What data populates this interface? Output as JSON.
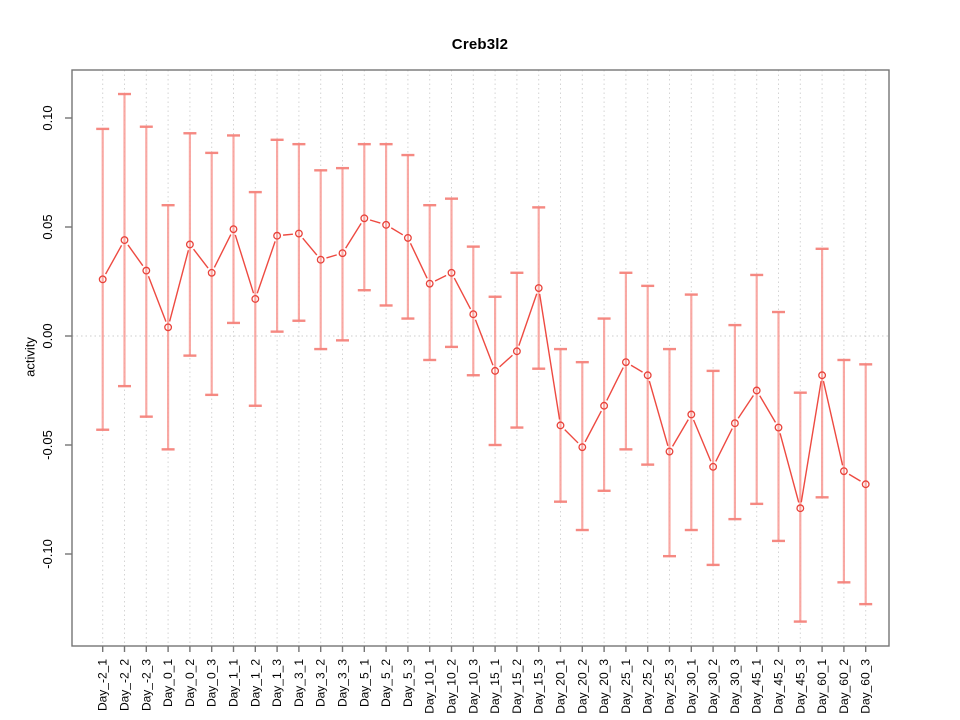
{
  "chart_data": {
    "type": "line",
    "title": "Creb3l2",
    "xlabel": "",
    "ylabel": "activity",
    "legend_position": "none",
    "grid": "vertical dotted gridlines at each category; dotted horizontal reference line at 0",
    "ylim": [
      -0.143,
      0.122
    ],
    "yticks": [
      0.1,
      0.05,
      0.0,
      -0.05,
      -0.1
    ],
    "ytick_labels": [
      "0.10",
      "0.05",
      "0.00",
      "-0.05",
      "-0.10"
    ],
    "zero_reference_line": 0.0,
    "categories": [
      "Day_-2_1",
      "Day_-2_2",
      "Day_-2_3",
      "Day_0_1",
      "Day_0_2",
      "Day_0_3",
      "Day_1_1",
      "Day_1_2",
      "Day_1_3",
      "Day_3_1",
      "Day_3_2",
      "Day_3_3",
      "Day_5_1",
      "Day_5_2",
      "Day_5_3",
      "Day_10_1",
      "Day_10_2",
      "Day_10_3",
      "Day_15_1",
      "Day_15_2",
      "Day_15_3",
      "Day_20_1",
      "Day_20_2",
      "Day_20_3",
      "Day_25_1",
      "Day_25_2",
      "Day_25_3",
      "Day_30_1",
      "Day_30_2",
      "Day_30_3",
      "Day_45_1",
      "Day_45_2",
      "Day_45_3",
      "Day_60_1",
      "Day_60_2",
      "Day_60_3"
    ],
    "series": [
      {
        "name": "activity",
        "marker": "open-circle",
        "values": [
          0.026,
          0.044,
          0.03,
          0.004,
          0.042,
          0.029,
          0.049,
          0.017,
          0.046,
          0.047,
          0.035,
          0.038,
          0.054,
          0.051,
          0.045,
          0.024,
          0.029,
          0.01,
          -0.016,
          -0.007,
          0.022,
          -0.041,
          -0.051,
          -0.032,
          -0.012,
          -0.018,
          -0.053,
          -0.036,
          -0.06,
          -0.04,
          -0.025,
          -0.042,
          -0.079,
          -0.018,
          -0.062,
          -0.068
        ],
        "error_upper": [
          0.095,
          0.111,
          0.096,
          0.06,
          0.093,
          0.084,
          0.092,
          0.066,
          0.09,
          0.088,
          0.076,
          0.077,
          0.088,
          0.088,
          0.083,
          0.06,
          0.063,
          0.041,
          0.018,
          0.029,
          0.059,
          -0.006,
          -0.012,
          0.008,
          0.029,
          0.023,
          -0.006,
          0.019,
          -0.016,
          0.005,
          0.028,
          0.011,
          -0.026,
          0.04,
          -0.011,
          -0.013
        ],
        "error_lower": [
          -0.043,
          -0.023,
          -0.037,
          -0.052,
          -0.009,
          -0.027,
          0.006,
          -0.032,
          0.002,
          0.007,
          -0.006,
          -0.002,
          0.021,
          0.014,
          0.008,
          -0.011,
          -0.005,
          -0.018,
          -0.05,
          -0.042,
          -0.015,
          -0.076,
          -0.089,
          -0.071,
          -0.052,
          -0.059,
          -0.101,
          -0.089,
          -0.105,
          -0.084,
          -0.077,
          -0.094,
          -0.131,
          -0.074,
          -0.113,
          -0.123
        ]
      }
    ],
    "colors": {
      "line": "#ee4a41",
      "marker_stroke": "#e8423a",
      "error_bar": "#f9a09b",
      "error_cap": "#f5837c",
      "gridline": "#d4d4d4",
      "zero_line": "#cccccc",
      "frame": "#757575",
      "text": "#000000"
    }
  }
}
